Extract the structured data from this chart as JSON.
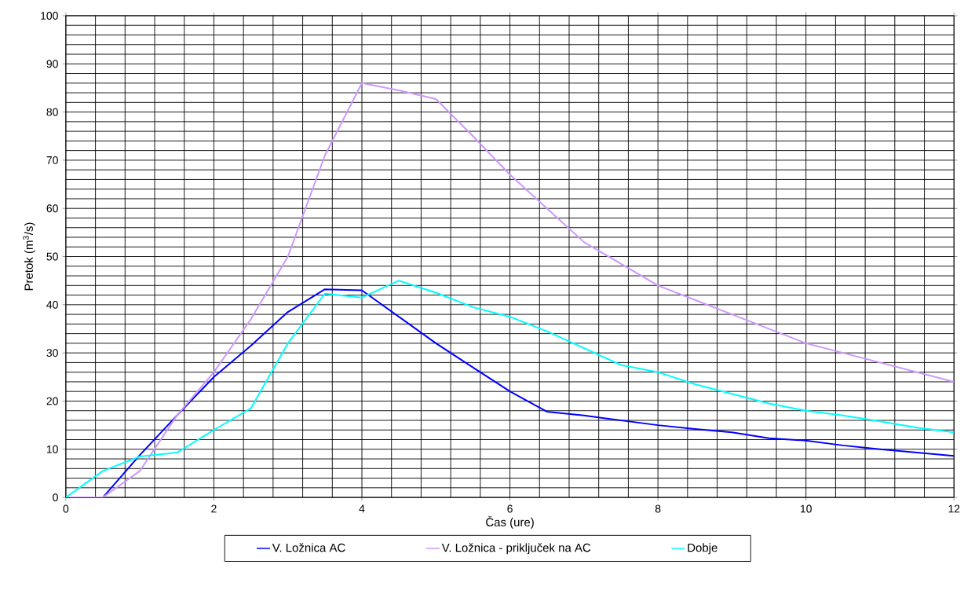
{
  "chart_data": {
    "type": "line",
    "xlabel": "Čas (ure)",
    "ylabel": "Pretok (m$^{3}$/s)",
    "xlim": [
      0,
      12
    ],
    "ylim": [
      0,
      100
    ],
    "xticks": [
      0,
      2,
      4,
      6,
      8,
      10,
      12
    ],
    "yticks": [
      0,
      10,
      20,
      30,
      40,
      50,
      60,
      70,
      80,
      90,
      100
    ],
    "grid": true,
    "legend": "bottom",
    "marker": "none",
    "line_style": "solid",
    "x": [
      0,
      0.5,
      1,
      1.5,
      2,
      2.5,
      3,
      3.5,
      4,
      4.5,
      5,
      5.5,
      6,
      6.5,
      7,
      7.5,
      8,
      8.5,
      9,
      9.5,
      10,
      10.5,
      11,
      11.5,
      12
    ],
    "series": [
      {
        "name": "V. Ložnica AC",
        "color": "#0000ff",
        "values": [
          0,
          0,
          8.8,
          17,
          25,
          31.5,
          38.5,
          43.2,
          43,
          37.5,
          32,
          27,
          22,
          17.8,
          17,
          16,
          15,
          14.2,
          13.5,
          12.3,
          11.8,
          10.8,
          10,
          9.3,
          8.6
        ]
      },
      {
        "name": "V. Ložnica - priključek na AC",
        "color": "#cc99ff",
        "values": [
          0,
          0,
          5.5,
          17,
          26,
          37,
          50,
          71,
          86,
          84.5,
          82.7,
          75,
          67,
          60,
          53,
          48.5,
          44,
          41,
          38,
          35,
          32,
          30,
          28,
          26,
          24
        ]
      },
      {
        "name": "Dobje",
        "color": "#00ffff",
        "values": [
          0,
          5.5,
          8.5,
          9.3,
          14,
          18.5,
          32,
          42.3,
          41.5,
          45,
          42.5,
          39.5,
          37.5,
          34.5,
          31,
          27.5,
          26,
          23.5,
          21.5,
          19.5,
          18,
          17,
          15.8,
          14.5,
          13.5
        ]
      }
    ]
  }
}
